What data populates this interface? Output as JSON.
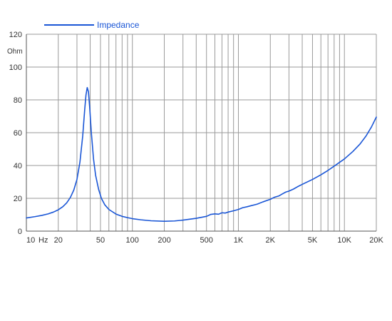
{
  "colors": {
    "series": "#1a56d6",
    "grid": "#9a9a9a",
    "axis": "#555555",
    "background": "#ffffff"
  },
  "chart_data": {
    "type": "line",
    "title": "",
    "xlabel": "",
    "ylabel": "",
    "x_unit": "Hz",
    "y_unit": "Ohm",
    "xscale": "log",
    "xlim": [
      10,
      20000
    ],
    "ylim": [
      0,
      120
    ],
    "grid": true,
    "legend_position": "top-left",
    "x_ticks": [
      {
        "value": 10,
        "label": "10"
      },
      {
        "value": 20,
        "label": "20"
      },
      {
        "value": 50,
        "label": "50"
      },
      {
        "value": 100,
        "label": "100"
      },
      {
        "value": 200,
        "label": "200"
      },
      {
        "value": 500,
        "label": "500"
      },
      {
        "value": 1000,
        "label": "1K"
      },
      {
        "value": 2000,
        "label": "2K"
      },
      {
        "value": 5000,
        "label": "5K"
      },
      {
        "value": 10000,
        "label": "10K"
      },
      {
        "value": 20000,
        "label": "20K"
      }
    ],
    "y_ticks": [
      {
        "value": 0,
        "label": "0"
      },
      {
        "value": 20,
        "label": "20"
      },
      {
        "value": 40,
        "label": "40"
      },
      {
        "value": 60,
        "label": "60"
      },
      {
        "value": 80,
        "label": "80"
      },
      {
        "value": 100,
        "label": "100"
      },
      {
        "value": 120,
        "label": "120"
      }
    ],
    "series": [
      {
        "name": "Impedance",
        "points": [
          [
            10,
            8.0
          ],
          [
            12,
            8.8
          ],
          [
            14,
            9.6
          ],
          [
            16,
            10.5
          ],
          [
            18,
            11.6
          ],
          [
            20,
            13.0
          ],
          [
            22,
            14.8
          ],
          [
            24,
            17.2
          ],
          [
            26,
            20.5
          ],
          [
            28,
            25.0
          ],
          [
            30,
            31.5
          ],
          [
            32,
            42.0
          ],
          [
            34,
            58.0
          ],
          [
            35.5,
            74.0
          ],
          [
            36.5,
            83.0
          ],
          [
            37.5,
            87.5
          ],
          [
            38.5,
            85.0
          ],
          [
            39.5,
            76.0
          ],
          [
            41,
            60.0
          ],
          [
            43,
            44.0
          ],
          [
            45,
            34.0
          ],
          [
            48,
            25.5
          ],
          [
            51,
            20.0
          ],
          [
            55,
            16.0
          ],
          [
            60,
            13.2
          ],
          [
            70,
            10.4
          ],
          [
            80,
            9.0
          ],
          [
            90,
            8.2
          ],
          [
            100,
            7.6
          ],
          [
            120,
            6.9
          ],
          [
            150,
            6.3
          ],
          [
            200,
            6.0
          ],
          [
            250,
            6.2
          ],
          [
            300,
            6.7
          ],
          [
            400,
            7.8
          ],
          [
            500,
            9.0
          ],
          [
            550,
            10.2
          ],
          [
            600,
            10.5
          ],
          [
            650,
            10.3
          ],
          [
            700,
            11.2
          ],
          [
            750,
            11.0
          ],
          [
            800,
            11.6
          ],
          [
            900,
            12.4
          ],
          [
            1000,
            13.2
          ],
          [
            1100,
            14.3
          ],
          [
            1200,
            14.8
          ],
          [
            1300,
            15.4
          ],
          [
            1500,
            16.4
          ],
          [
            1700,
            17.8
          ],
          [
            2000,
            19.4
          ],
          [
            2200,
            20.7
          ],
          [
            2400,
            21.4
          ],
          [
            2600,
            22.7
          ],
          [
            2800,
            23.8
          ],
          [
            3000,
            24.4
          ],
          [
            3300,
            25.6
          ],
          [
            3600,
            27.0
          ],
          [
            4000,
            28.5
          ],
          [
            5000,
            31.5
          ],
          [
            6000,
            34.3
          ],
          [
            7000,
            37.0
          ],
          [
            8000,
            39.6
          ],
          [
            10000,
            44.0
          ],
          [
            12000,
            48.5
          ],
          [
            14000,
            53.0
          ],
          [
            16000,
            58.0
          ],
          [
            18000,
            63.5
          ],
          [
            20000,
            69.5
          ]
        ]
      }
    ]
  }
}
